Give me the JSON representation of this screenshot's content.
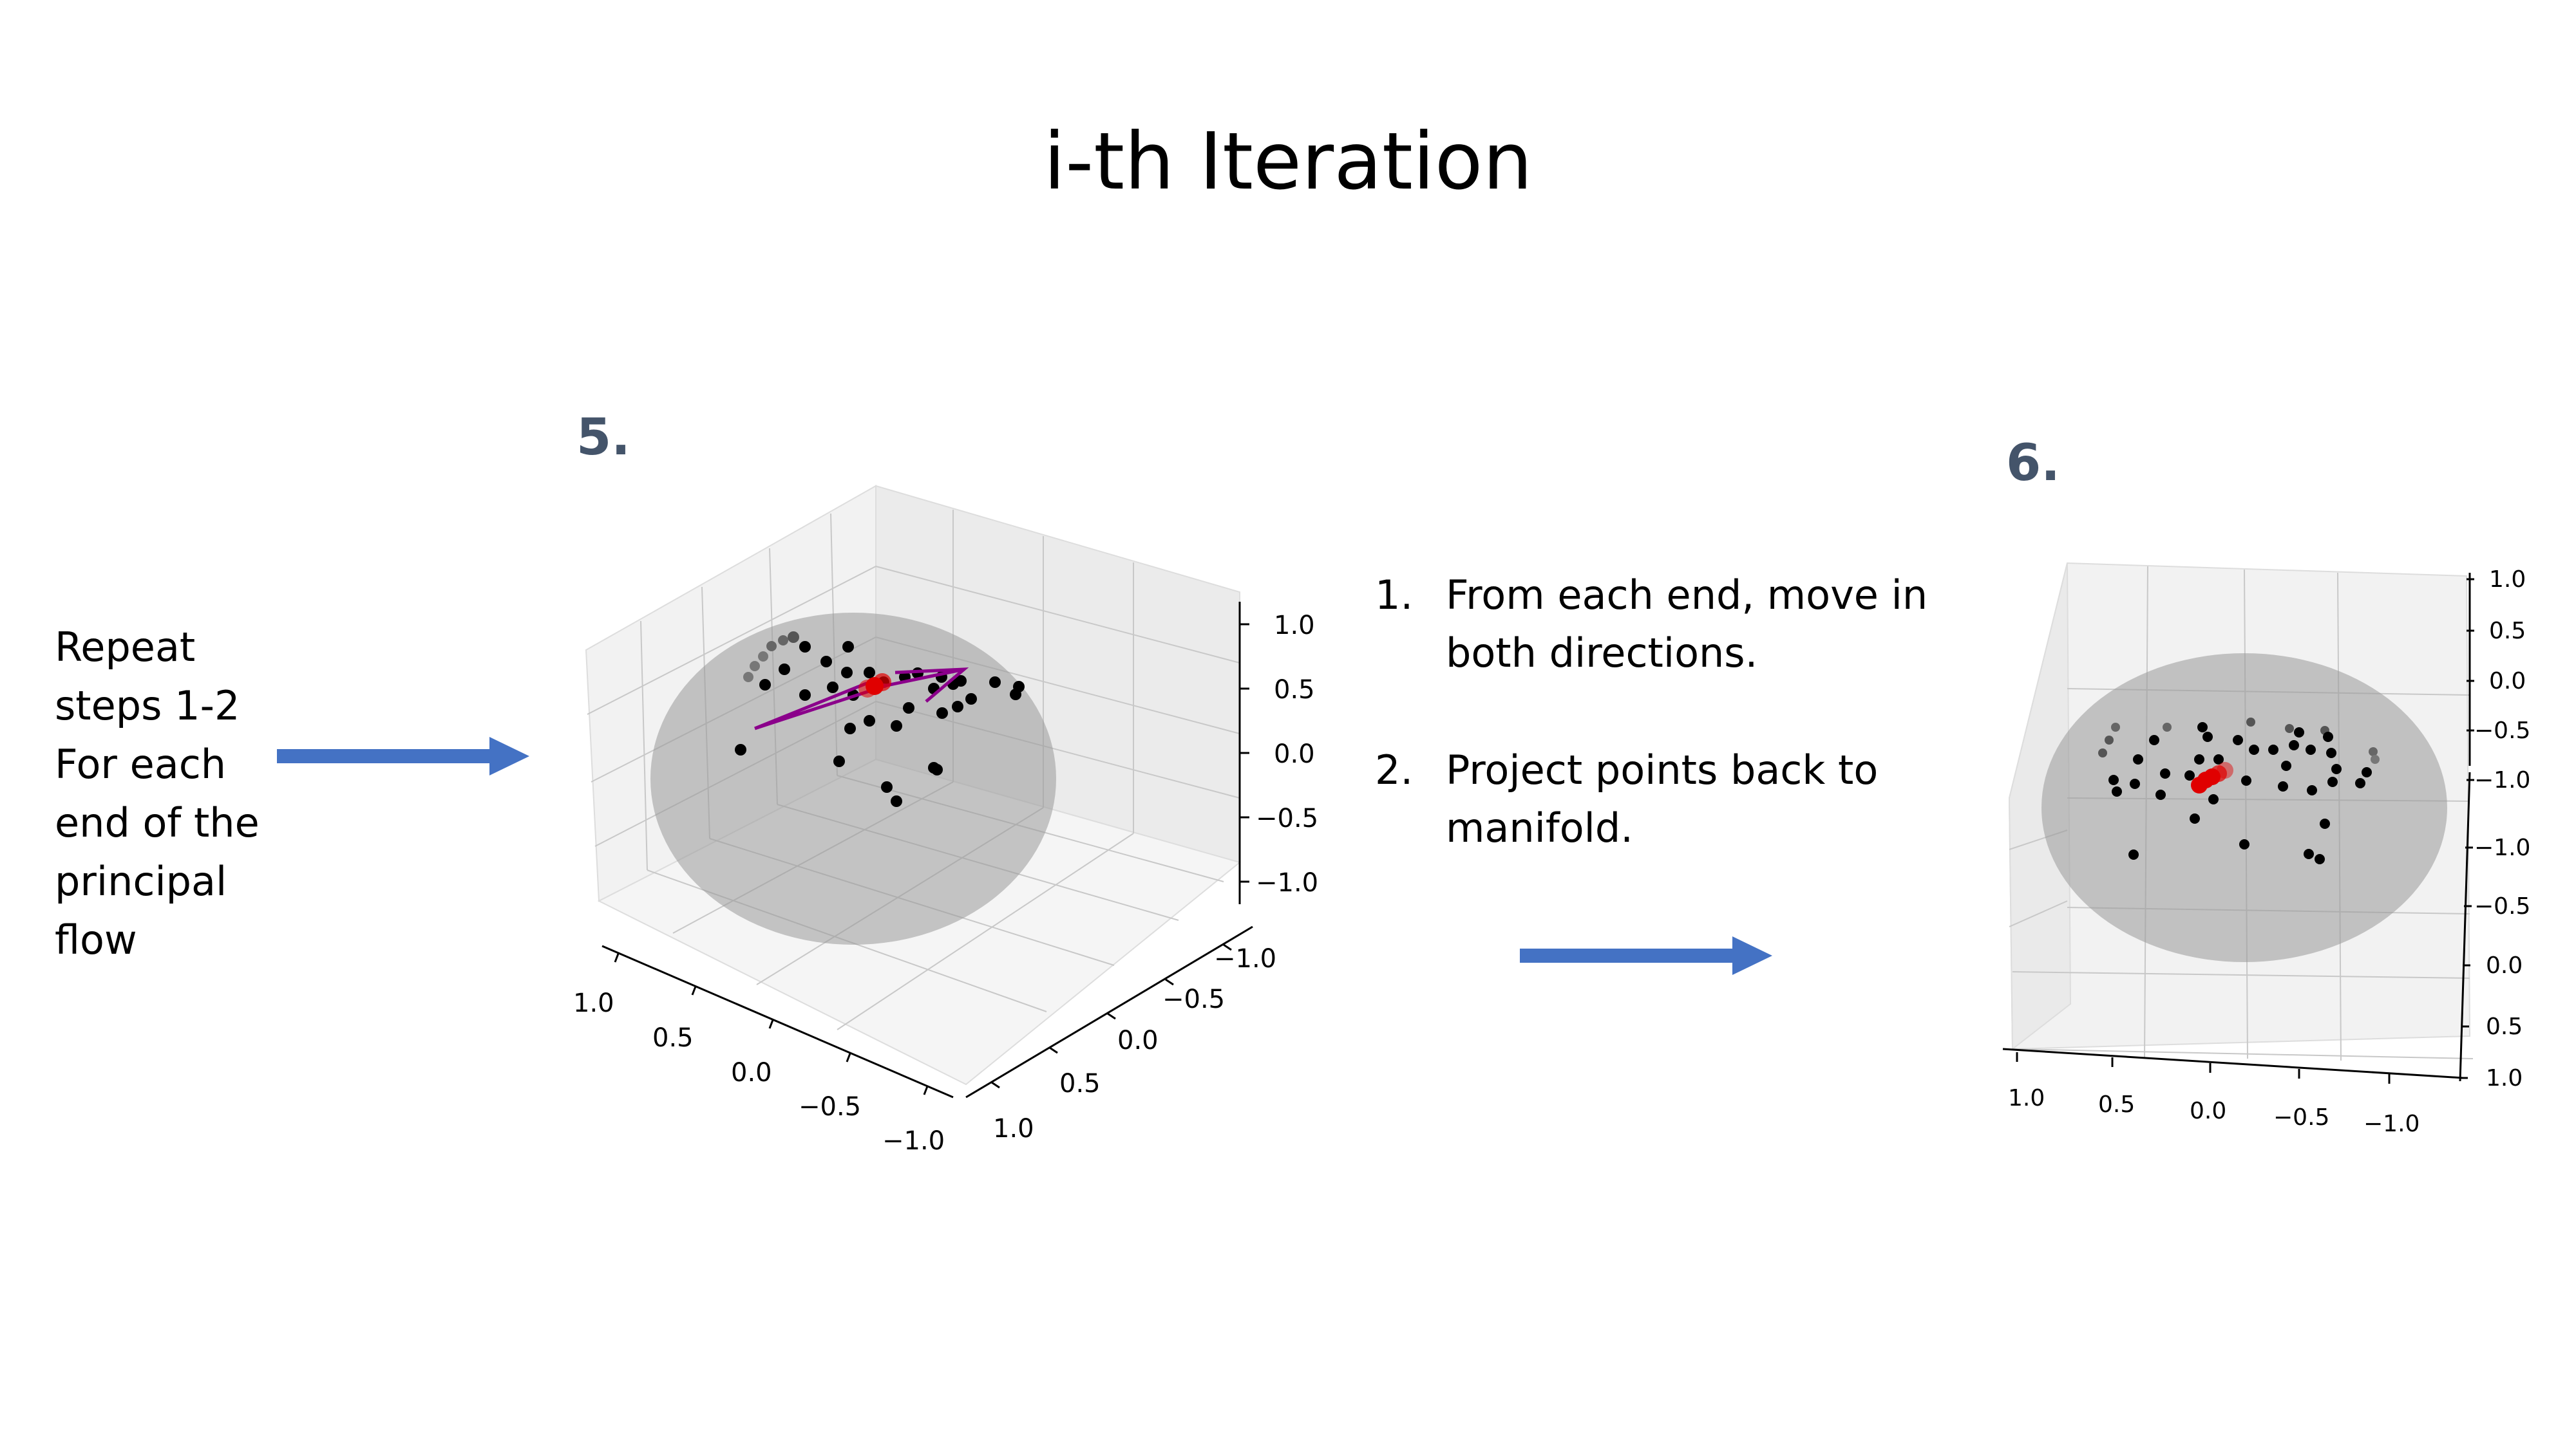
{
  "slide": {
    "title": "i-th Iteration",
    "left_note": [
      "Repeat",
      "steps 1-2",
      "For each",
      "end of the",
      "principal",
      "flow"
    ],
    "steps": [
      {
        "num": "1.",
        "lines": [
          "From each end, move in",
          "both directions."
        ]
      },
      {
        "num": "2.",
        "lines": [
          "Project points back to",
          "manifold."
        ]
      }
    ],
    "accent_color": "#4472c4",
    "label_color": "#44546a"
  },
  "panels": [
    {
      "label": "5.",
      "z_ticks": [
        "1.0",
        "0.5",
        "0.0",
        "−0.5",
        "−1.0"
      ],
      "y_ticks": [
        "−1.0",
        "−0.5",
        "0.0",
        "0.5",
        "1.0"
      ],
      "x_ticks": [
        "1.0",
        "0.5",
        "0.0",
        "−0.5",
        "−1.0"
      ]
    },
    {
      "label": "6.",
      "z_ticks": [
        "1.0",
        "0.5",
        "0.0",
        "−0.5",
        "−1.0",
        "−1.0",
        "−0.5",
        "0.0",
        "0.5",
        "1.0"
      ],
      "x_ticks": [
        "1.0",
        "0.5",
        "0.0",
        "−0.5",
        "−1.0"
      ]
    }
  ]
}
